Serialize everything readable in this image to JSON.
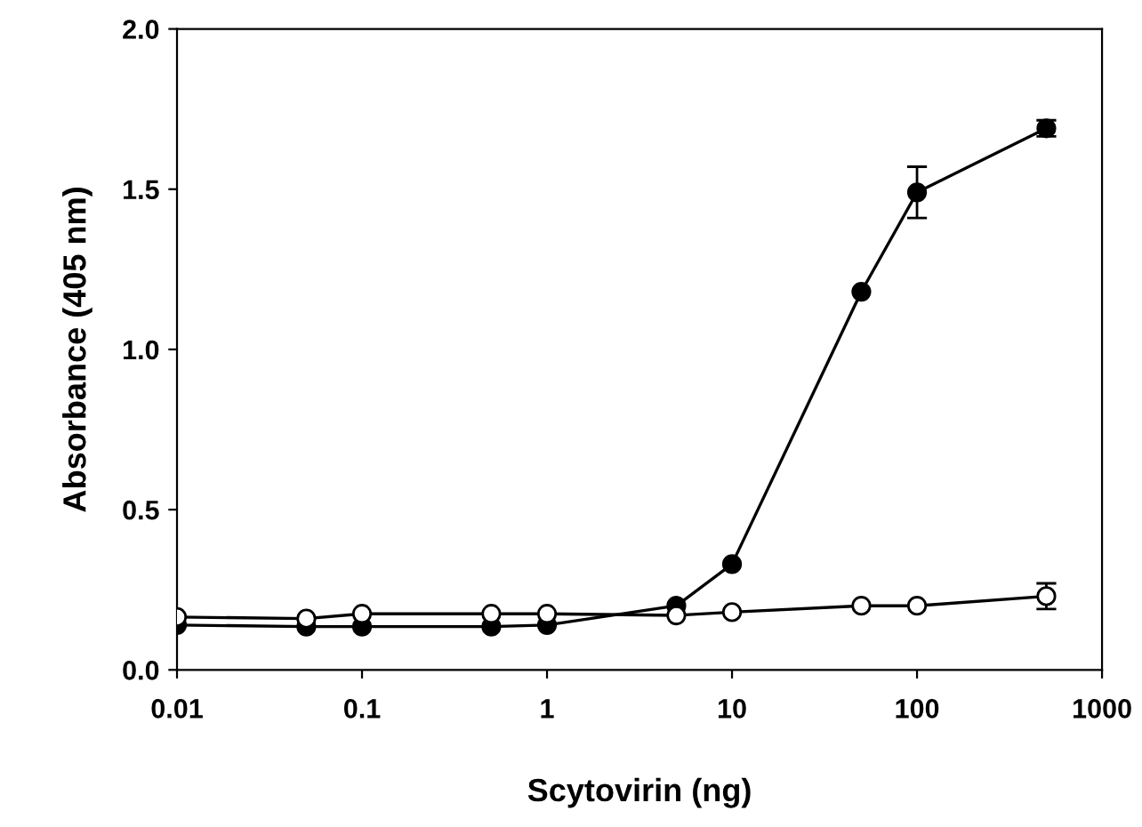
{
  "chart_data": {
    "type": "line",
    "xlabel": "Scytovirin (ng)",
    "ylabel": "Absorbance (405 nm)",
    "log": "x",
    "xlim": [
      0.01,
      1000
    ],
    "xticks": [
      0.01,
      0.1,
      1,
      10,
      100,
      1000
    ],
    "ylim": [
      0,
      2.0
    ],
    "yticks": [
      {
        "value": 0,
        "label": "0.0"
      },
      {
        "value": 0.5,
        "label": "0.5"
      },
      {
        "value": 1.0,
        "label": "1.0"
      },
      {
        "value": 1.5,
        "label": "1.5"
      },
      {
        "value": 2.0,
        "label": "2.0"
      }
    ],
    "x": [
      0.01,
      0.05,
      0.1,
      0.5,
      1,
      5,
      10,
      50,
      100,
      500
    ],
    "marker": "circle",
    "line_style": "solid",
    "grid": false,
    "series": [
      {
        "color": "#000000",
        "values": [
          0.14,
          0.135,
          0.135,
          0.135,
          0.14,
          0.2,
          0.33,
          1.18,
          1.49,
          1.69
        ],
        "errors": [
          null,
          null,
          null,
          null,
          null,
          null,
          null,
          null,
          0.08,
          0.025
        ]
      },
      {
        "color": "#ffffff",
        "values": [
          0.165,
          0.16,
          0.175,
          0.175,
          0.175,
          0.17,
          0.18,
          0.2,
          0.2,
          0.23
        ],
        "errors": [
          null,
          null,
          null,
          null,
          null,
          null,
          null,
          null,
          null,
          0.04
        ]
      }
    ]
  }
}
